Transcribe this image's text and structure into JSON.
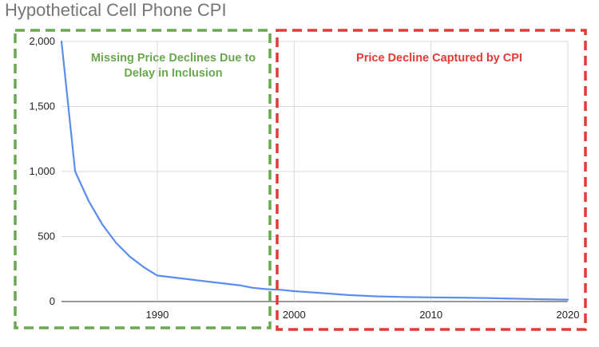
{
  "chart_data": {
    "type": "line",
    "title": "Hypothetical Cell Phone CPI",
    "xlabel": "",
    "ylabel": "",
    "xlim": [
      1983,
      2020
    ],
    "ylim": [
      0,
      2000
    ],
    "grid": true,
    "x_ticks": [
      1990,
      2000,
      2010,
      2020
    ],
    "x_tick_labels": [
      "1990",
      "2000",
      "2010",
      "2020"
    ],
    "y_ticks": [
      0,
      500,
      1000,
      1500,
      2000
    ],
    "y_tick_labels": [
      "0",
      "500",
      "1,000",
      "1,500",
      "2,000"
    ],
    "series": [
      {
        "name": "Cell Phone CPI",
        "color": "#5b8def",
        "x": [
          1983,
          1984,
          1985,
          1986,
          1987,
          1988,
          1989,
          1990,
          1992,
          1994,
          1996,
          1997,
          1998,
          1999,
          2000,
          2002,
          2004,
          2006,
          2008,
          2010,
          2012,
          2014,
          2016,
          2018,
          2020
        ],
        "y": [
          2000,
          1000,
          770,
          590,
          450,
          345,
          265,
          200,
          175,
          150,
          125,
          105,
          95,
          90,
          80,
          65,
          50,
          40,
          35,
          32,
          30,
          27,
          22,
          18,
          15
        ]
      }
    ],
    "annotations": [
      {
        "name": "missing-declines",
        "lines": [
          "Missing Price Declines Due to",
          "Delay in Inclusion"
        ],
        "color": "#6aa84f",
        "box_style": "dashed"
      },
      {
        "name": "captured-decline",
        "lines": [
          "Price Decline Captured by CPI"
        ],
        "color": "#e53935",
        "box_style": "dashed"
      }
    ]
  }
}
